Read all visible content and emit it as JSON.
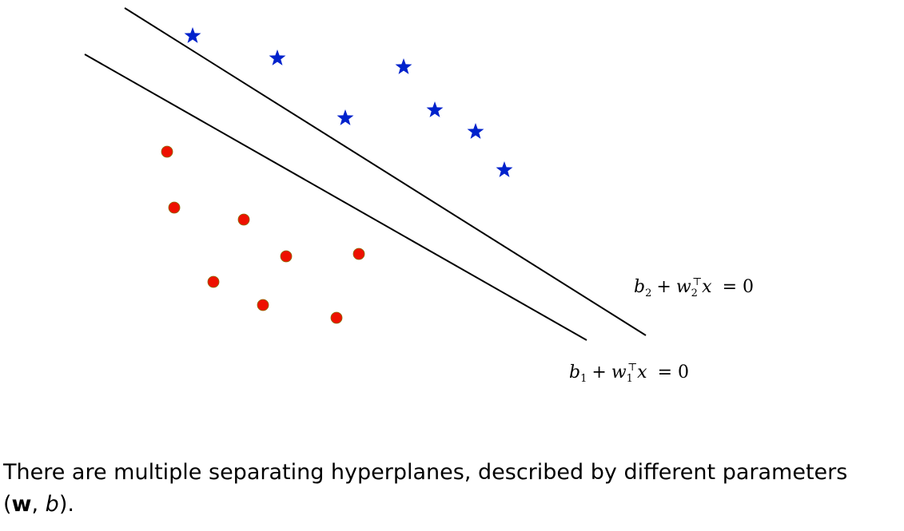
{
  "diagram": {
    "hyperplanes": [
      {
        "id": "2",
        "b": "b",
        "b_sub": "2",
        "plus": "+",
        "w": "w",
        "w_sub": "2",
        "w_sup": "⊤",
        "x": "x",
        "eq": "= 0"
      },
      {
        "id": "1",
        "b": "b",
        "b_sub": "1",
        "plus": "+",
        "w": "w",
        "w_sub": "1",
        "w_sup": "⊤",
        "x": "x",
        "eq": "= 0"
      }
    ],
    "class_positive": {
      "marker": "star-icon",
      "color": "#0022cc",
      "count": 7
    },
    "class_negative": {
      "marker": "dot-icon",
      "color": "#ee1100",
      "count": 8
    }
  },
  "caption": {
    "line1": "There are multiple separating hyperplanes, described by different parameters",
    "open": "(",
    "w": "w",
    "comma": ", ",
    "b": "b",
    "close": ")."
  }
}
